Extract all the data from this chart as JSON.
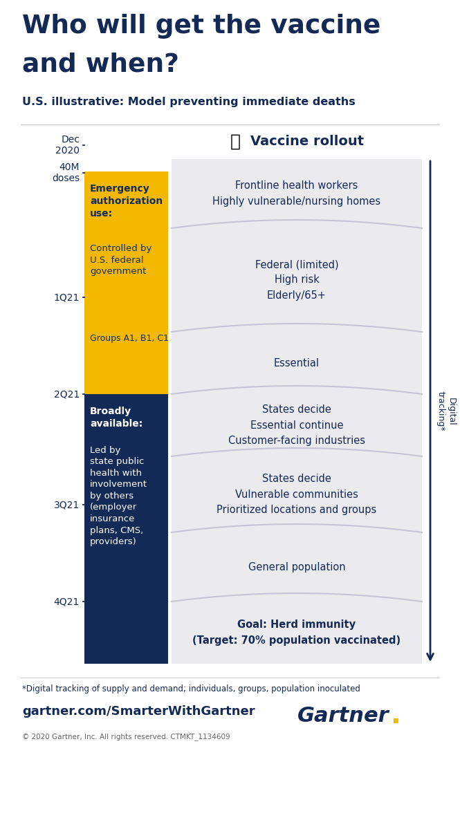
{
  "title_line1": "Who will get the vaccine",
  "title_line2": "and when?",
  "subtitle": "U.S. illustrative: Model preventing immediate deaths",
  "bg_color": "#ffffff",
  "navy": "#132a57",
  "yellow": "#f5b800",
  "gray_panel": "#eaeaef",
  "gray_panel2": "#e0e0ea",
  "timeline_labels": [
    "Dec\n2020",
    "40M\ndoses",
    "1Q21",
    "2Q21",
    "3Q21",
    "4Q21"
  ],
  "vaccine_rollout_label": "Vaccine rollout",
  "digital_tracking_label": "Digital\ntracking*",
  "footer_note": "*Digital tracking of supply and demand; individuals, groups, population inoculated",
  "footer_url": "gartner.com/SmarterWithGartner",
  "footer_copy": "© 2020 Gartner, Inc. All rights reserved. CTMKT_1134609",
  "emergency_bold": "Emergency\nauthorization\nuse:",
  "emergency_normal": "Controlled by\nU.S. federal\ngovernment",
  "emergency_groups": "Groups A1, B1, C1",
  "broadly_bold": "Broadly\navailable:",
  "broadly_normal": "Led by\nstate public\nhealth with\ninvolvement\nby others\n(employer\ninsurance\nplans, CMS,\nproviders)"
}
